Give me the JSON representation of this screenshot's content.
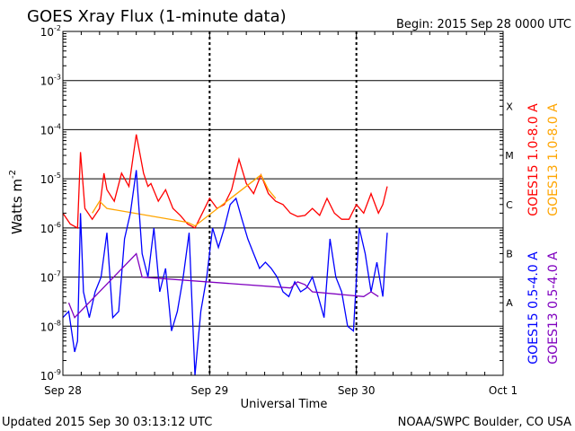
{
  "chart_data": {
    "type": "line",
    "title": "GOES Xray Flux (1-minute data)",
    "begin_label": "Begin:  2015 Sep 28 0000 UTC",
    "xlabel": "Universal Time",
    "ylabel_main": "Watts m",
    "ylabel_sup": "-2",
    "y_scale": "log",
    "ylim": [
      1e-09,
      0.01
    ],
    "xlim_days": [
      0,
      3
    ],
    "grid": true,
    "y_ticks": [
      {
        "value": 0.01,
        "mantissa": "10",
        "exp": "-2"
      },
      {
        "value": 0.001,
        "mantissa": "10",
        "exp": "-3"
      },
      {
        "value": 0.0001,
        "mantissa": "10",
        "exp": "-4"
      },
      {
        "value": 1e-05,
        "mantissa": "10",
        "exp": "-5"
      },
      {
        "value": 1e-06,
        "mantissa": "10",
        "exp": "-6"
      },
      {
        "value": 1e-07,
        "mantissa": "10",
        "exp": "-7"
      },
      {
        "value": 1e-08,
        "mantissa": "10",
        "exp": "-8"
      },
      {
        "value": 1e-09,
        "mantissa": "10",
        "exp": "-9"
      }
    ],
    "x_ticks": [
      {
        "day": 0,
        "label": "Sep 28"
      },
      {
        "day": 1,
        "label": "Sep 29"
      },
      {
        "day": 2,
        "label": "Sep 30"
      },
      {
        "day": 3,
        "label": "Oct 1"
      }
    ],
    "flare_classes": [
      {
        "label": "X",
        "value": 0.0003
      },
      {
        "label": "M",
        "value": 3e-05
      },
      {
        "label": "C",
        "value": 3e-06
      },
      {
        "label": "B",
        "value": 3e-07
      },
      {
        "label": "A",
        "value": 3e-08
      }
    ],
    "series": [
      {
        "name": "GOES15 1.0-8.0 A",
        "color": "#ff0000",
        "x": [
          0.0,
          0.05,
          0.1,
          0.12,
          0.15,
          0.2,
          0.25,
          0.28,
          0.3,
          0.35,
          0.4,
          0.45,
          0.5,
          0.55,
          0.58,
          0.6,
          0.65,
          0.7,
          0.75,
          0.8,
          0.85,
          0.9,
          0.95,
          1.0,
          1.05,
          1.1,
          1.15,
          1.2,
          1.25,
          1.3,
          1.35,
          1.4,
          1.45,
          1.5,
          1.55,
          1.6,
          1.65,
          1.7,
          1.75,
          1.8,
          1.85,
          1.9,
          1.95,
          2.0,
          2.05,
          2.1,
          2.15,
          2.18,
          2.21
        ],
        "y": [
          2e-06,
          1.2e-06,
          1e-06,
          3.5e-05,
          2.5e-06,
          1.5e-06,
          2.5e-06,
          1.3e-05,
          6e-06,
          3.5e-06,
          1.3e-05,
          7e-06,
          8e-05,
          1.3e-05,
          7e-06,
          8e-06,
          3.5e-06,
          6e-06,
          2.5e-06,
          1.8e-06,
          1.2e-06,
          1e-06,
          2e-06,
          4e-06,
          2.5e-06,
          3e-06,
          6e-06,
          2.5e-05,
          8e-06,
          5e-06,
          1.2e-05,
          5e-06,
          3.5e-06,
          3e-06,
          2e-06,
          1.7e-06,
          1.8e-06,
          2.5e-06,
          1.8e-06,
          4e-06,
          2e-06,
          1.5e-06,
          1.5e-06,
          3e-06,
          2e-06,
          5e-06,
          2e-06,
          3e-06,
          7e-06
        ]
      },
      {
        "name": "GOES13 1.0-8.0 A",
        "color": "#ffa500",
        "x": [
          0.2,
          0.25,
          0.3,
          0.85,
          0.9,
          1.35,
          1.4,
          1.45
        ],
        "y": [
          2e-06,
          3.5e-06,
          2.5e-06,
          1.3e-06,
          1.1e-06,
          1.2e-05,
          6e-06,
          4e-06
        ]
      },
      {
        "name": "GOES15 0.5-4.0 A",
        "color": "#0000ff",
        "x": [
          0.0,
          0.04,
          0.08,
          0.1,
          0.12,
          0.14,
          0.18,
          0.22,
          0.26,
          0.3,
          0.34,
          0.38,
          0.42,
          0.46,
          0.5,
          0.54,
          0.58,
          0.62,
          0.66,
          0.7,
          0.74,
          0.78,
          0.82,
          0.86,
          0.9,
          0.94,
          0.98,
          1.02,
          1.06,
          1.1,
          1.14,
          1.18,
          1.22,
          1.26,
          1.3,
          1.34,
          1.38,
          1.42,
          1.46,
          1.5,
          1.54,
          1.58,
          1.62,
          1.66,
          1.7,
          1.74,
          1.78,
          1.82,
          1.86,
          1.9,
          1.94,
          1.98,
          2.02,
          2.06,
          2.1,
          2.14,
          2.18,
          2.21
        ],
        "y": [
          1.5e-08,
          2e-08,
          3e-09,
          5e-09,
          2e-06,
          5e-08,
          1.5e-08,
          5e-08,
          1e-07,
          8e-07,
          1.5e-08,
          2e-08,
          6e-07,
          2e-06,
          1.5e-05,
          3e-07,
          1e-07,
          1e-06,
          5e-08,
          1.5e-07,
          8e-09,
          2e-08,
          1e-07,
          8e-07,
          1e-09,
          2e-08,
          1e-07,
          1e-06,
          4e-07,
          1e-06,
          3e-06,
          4e-06,
          1.5e-06,
          6e-07,
          3e-07,
          1.5e-07,
          2e-07,
          1.5e-07,
          1e-07,
          5e-08,
          4e-08,
          8e-08,
          5e-08,
          6e-08,
          1e-07,
          4e-08,
          1.5e-08,
          6e-07,
          1e-07,
          5e-08,
          1e-08,
          8e-09,
          1e-06,
          3e-07,
          5e-08,
          2e-07,
          4e-08,
          8e-07
        ]
      },
      {
        "name": "GOES13 0.5-4.0 A",
        "color": "#7f00bf",
        "x": [
          0.04,
          0.08,
          0.12,
          0.5,
          0.54,
          1.55,
          1.6,
          1.65,
          1.7,
          2.05,
          2.1,
          2.15
        ],
        "y": [
          3e-08,
          1.5e-08,
          2e-08,
          3e-07,
          1e-07,
          6e-08,
          8e-08,
          7e-08,
          5e-08,
          4e-08,
          5e-08,
          4e-08
        ]
      }
    ]
  },
  "footer": {
    "updated": "Updated 2015 Sep 30 03:13:12 UTC",
    "credit": "NOAA/SWPC Boulder, CO USA"
  }
}
